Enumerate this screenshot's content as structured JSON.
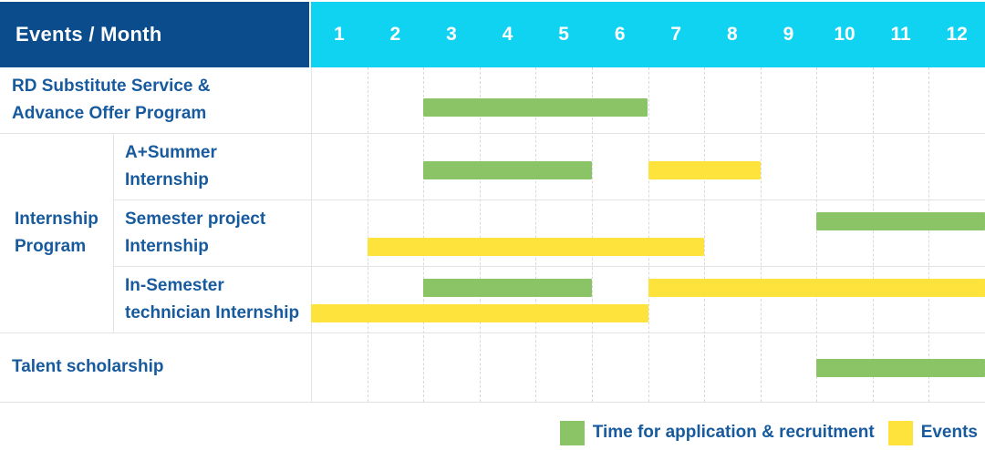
{
  "header": {
    "title": "Events / Month",
    "months": [
      "1",
      "2",
      "3",
      "4",
      "5",
      "6",
      "7",
      "8",
      "9",
      "10",
      "11",
      "12"
    ]
  },
  "colors": {
    "header_bg": "#0B4D8C",
    "months_bg": "#0FD3F0",
    "green": "#8BC466",
    "yellow": "#FFE33D",
    "text_blue": "#175A9D",
    "grid_line": "#E3E3E3"
  },
  "legend": {
    "items": [
      {
        "color_key": "green",
        "label": "Time for application & recruitment"
      },
      {
        "color_key": "yellow",
        "label": "Events"
      }
    ]
  },
  "chart_data": {
    "type": "bar",
    "variant": "gantt-timeline",
    "title": "Events / Month",
    "x_label": "Month",
    "x_ticks": [
      1,
      2,
      3,
      4,
      5,
      6,
      7,
      8,
      9,
      10,
      11,
      12
    ],
    "x_range": [
      1,
      12
    ],
    "grid": true,
    "legend_position": "bottom-right",
    "series_legend": {
      "green": "Time for application & recruitment",
      "yellow": "Events"
    },
    "group_label": {
      "label": "Internship Program",
      "label_lines": [
        "Internship",
        "Program"
      ],
      "member_rows": [
        1,
        2,
        3
      ]
    },
    "rows": [
      {
        "label": "RD Substitute Service & Advance Offer Program",
        "label_lines": [
          "RD Substitute Service &",
          "Advance Offer Program"
        ],
        "group": null,
        "lines": [
          [
            {
              "series": "green",
              "start_month": 3,
              "end_month": 6
            }
          ]
        ]
      },
      {
        "label": "A+Summer Internship",
        "label_lines": [
          "A+Summer",
          "Internship"
        ],
        "group": "Internship Program",
        "lines": [
          [
            {
              "series": "green",
              "start_month": 3,
              "end_month": 5
            },
            {
              "series": "yellow",
              "start_month": 7,
              "end_month": 8
            }
          ]
        ]
      },
      {
        "label": "Semester project Internship",
        "label_lines": [
          "Semester project",
          "Internship"
        ],
        "group": "Internship Program",
        "lines": [
          [
            {
              "series": "green",
              "start_month": 10,
              "end_month": 12
            }
          ],
          [
            {
              "series": "yellow",
              "start_month": 2,
              "end_month": 7
            }
          ]
        ]
      },
      {
        "label": "In-Semester technician Internship",
        "label_lines": [
          "In-Semester",
          "technician Internship"
        ],
        "group": "Internship Program",
        "lines": [
          [
            {
              "series": "green",
              "start_month": 3,
              "end_month": 5
            },
            {
              "series": "yellow",
              "start_month": 7,
              "end_month": 12
            }
          ],
          [
            {
              "series": "yellow",
              "start_month": 1,
              "end_month": 6
            }
          ]
        ]
      },
      {
        "label": "Talent scholarship",
        "label_lines": [
          "Talent scholarship"
        ],
        "group": null,
        "lines": [
          [
            {
              "series": "green",
              "start_month": 10,
              "end_month": 12
            }
          ]
        ]
      }
    ]
  }
}
